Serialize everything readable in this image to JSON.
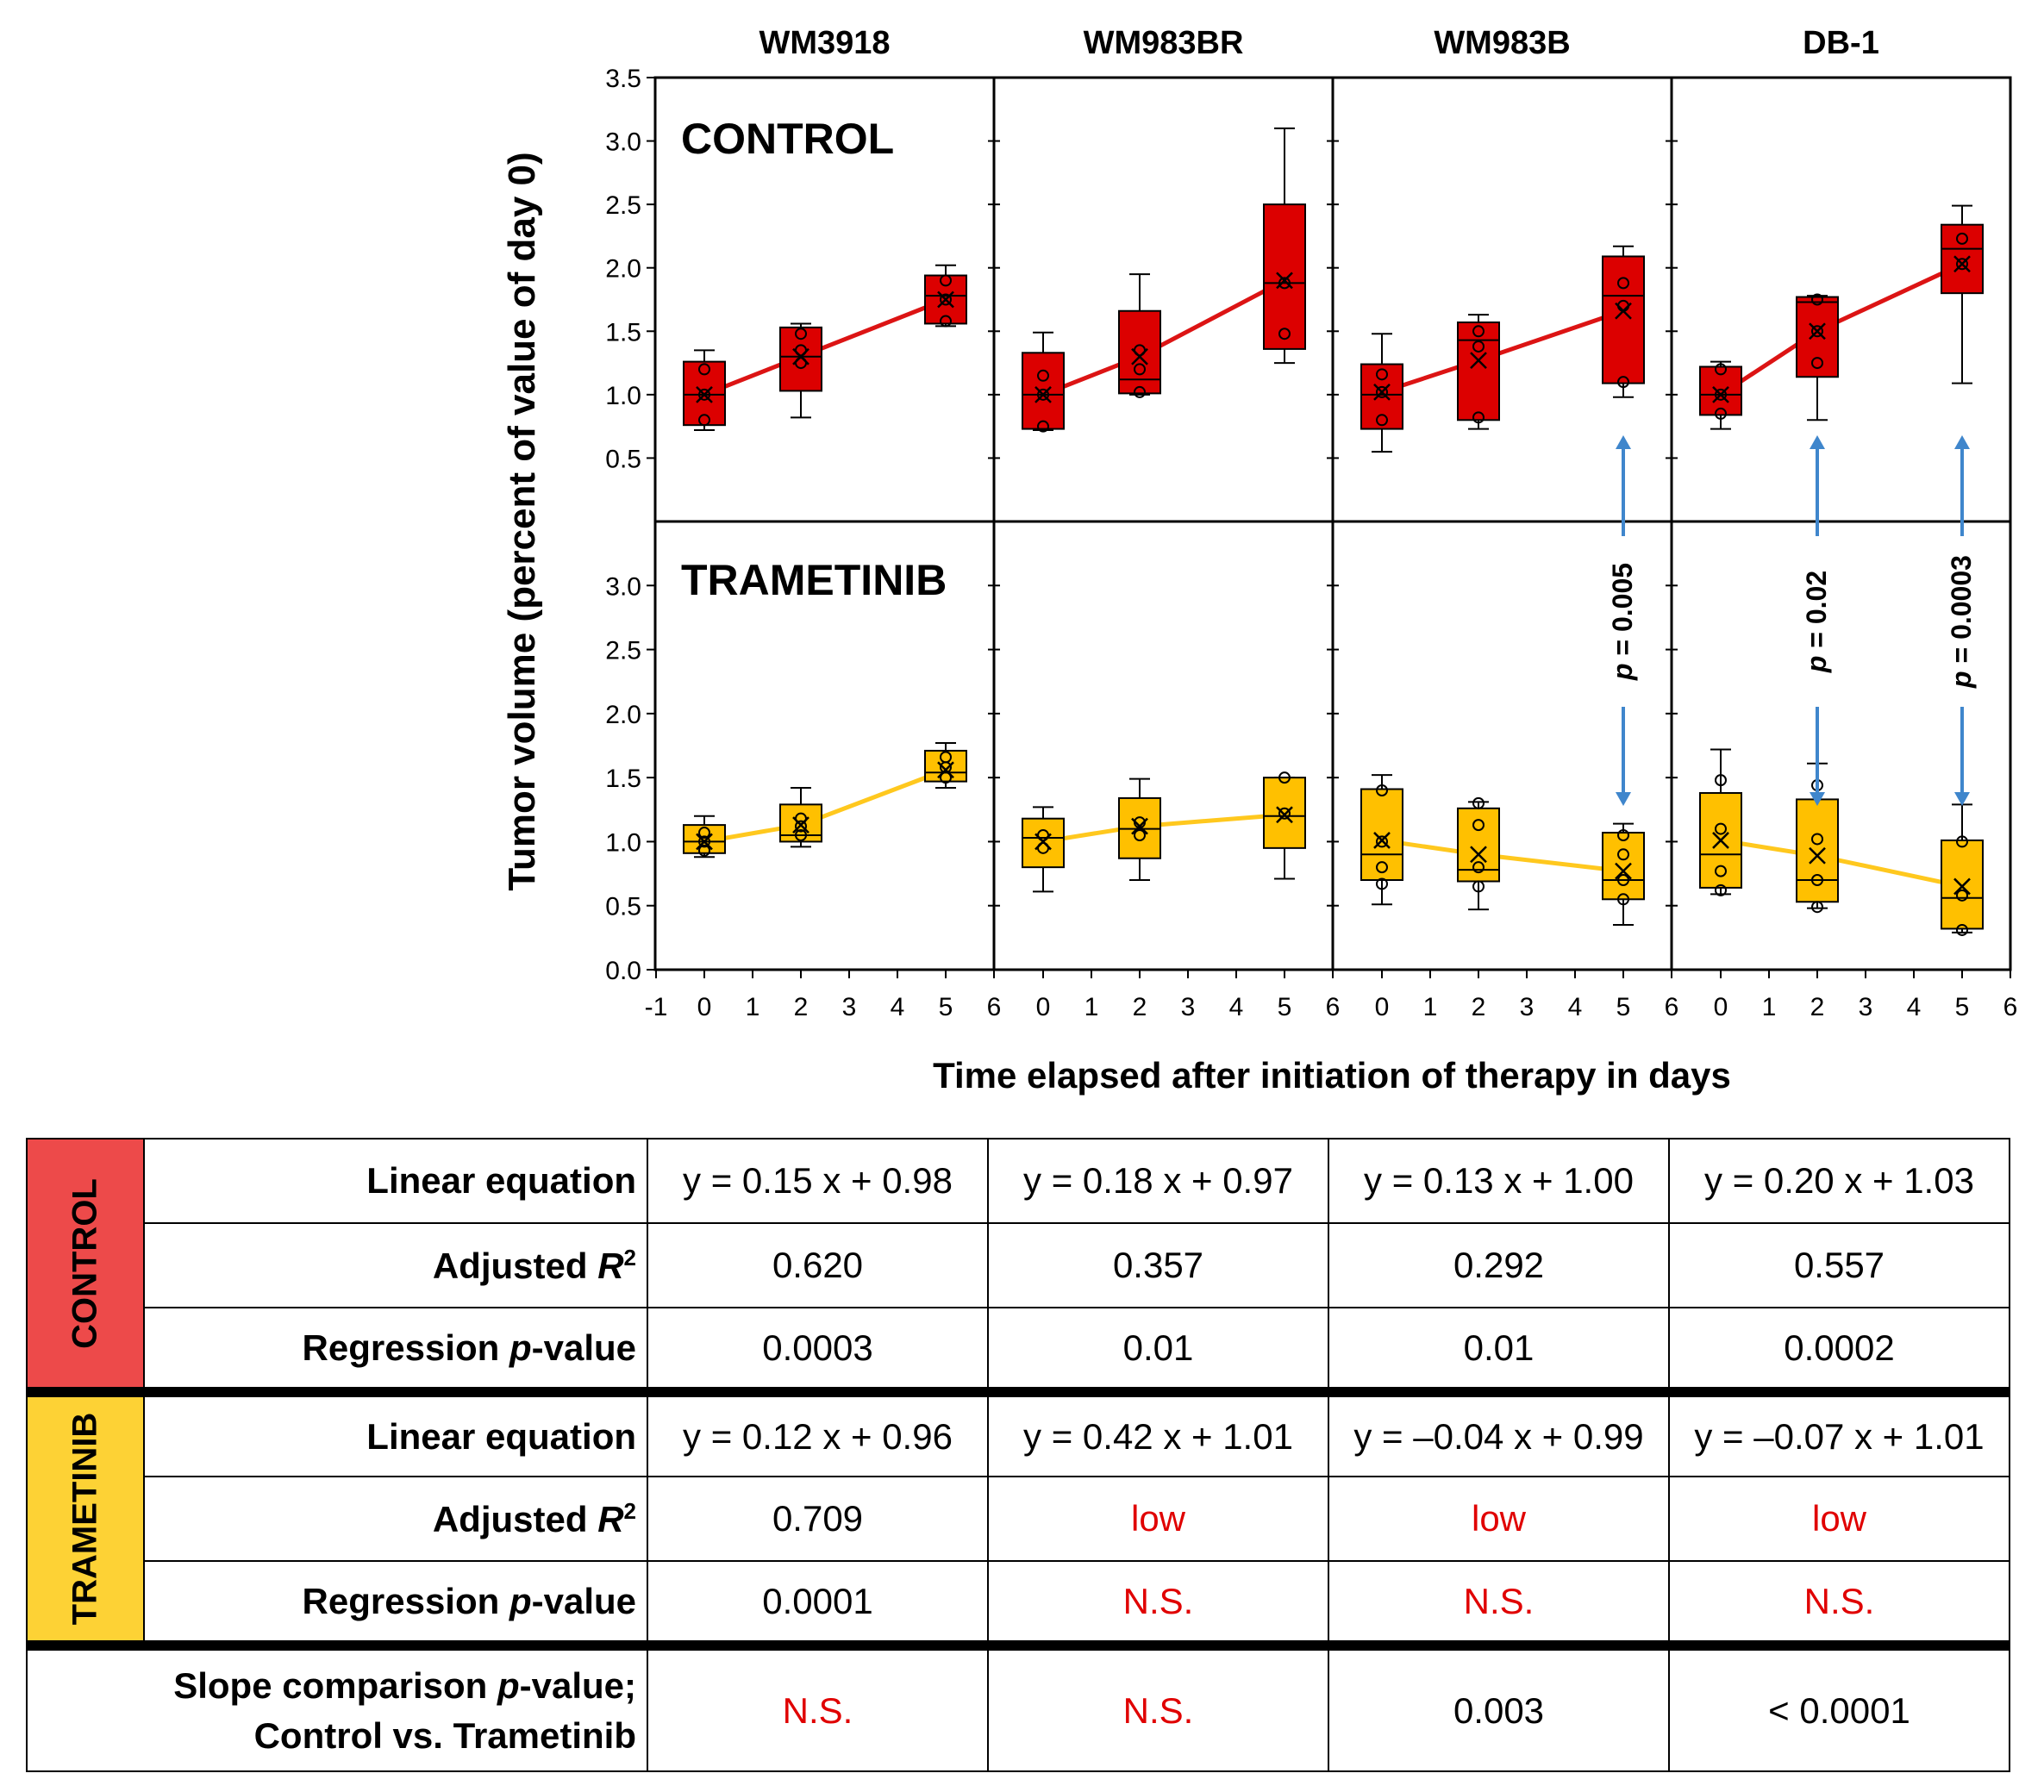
{
  "colors": {
    "control_fill": "#dc0000",
    "control_line": "#dc1414",
    "trametinib_fill": "#ffc000",
    "trametinib_line": "#ffc81e",
    "arrow": "#3f86cc",
    "not_significant_text": "#e00000",
    "control_group_bg": "#ed4a4a",
    "trametinib_group_bg": "#fdd235"
  },
  "chart_data": {
    "type": "box",
    "ylabel": "Tumor volume (percent of value of day 0)",
    "xlabel": "Time elapsed after initiation of therapy in days",
    "control_ylim": [
      0,
      3.5
    ],
    "control_yticks": [
      "0.5",
      "1.0",
      "1.5",
      "2.0",
      "2.5",
      "3.0",
      "3.5"
    ],
    "trametinib_ylim": [
      0,
      3.5
    ],
    "trametinib_yticks": [
      "0.0",
      "0.5",
      "1.0",
      "1.5",
      "2.0",
      "2.5",
      "3.0"
    ],
    "xticks": [
      [
        "-1",
        "0",
        "1",
        "2",
        "3",
        "4",
        "5",
        "6"
      ],
      [
        "0",
        "1",
        "2",
        "3",
        "4",
        "5",
        "6"
      ],
      [
        "0",
        "1",
        "2",
        "3",
        "4",
        "5",
        "6"
      ],
      [
        "0",
        "1",
        "2",
        "3",
        "4",
        "5",
        "6"
      ]
    ],
    "row_labels": {
      "control": "CONTROL",
      "trametinib": "TRAMETINIB"
    },
    "cell_lines": [
      "WM3918",
      "WM983BR",
      "WM983B",
      "DB-1"
    ],
    "panels": [
      {
        "cell_line": "WM3918",
        "control": [
          {
            "day": 0,
            "min": 0.72,
            "q1": 0.76,
            "median": 1.0,
            "q3": 1.26,
            "max": 1.35,
            "mean": 1.0,
            "points": [
              0.8,
              1.0,
              1.2
            ]
          },
          {
            "day": 2,
            "min": 0.82,
            "q1": 1.03,
            "median": 1.3,
            "q3": 1.53,
            "max": 1.56,
            "mean": 1.3,
            "points": [
              1.25,
              1.35,
              1.48
            ]
          },
          {
            "day": 5,
            "min": 1.54,
            "q1": 1.56,
            "median": 1.78,
            "q3": 1.94,
            "max": 2.02,
            "mean": 1.75,
            "points": [
              1.58,
              1.75,
              1.9
            ]
          }
        ],
        "trametinib": [
          {
            "day": 0,
            "min": 0.88,
            "q1": 0.91,
            "median": 1.0,
            "q3": 1.13,
            "max": 1.2,
            "mean": 1.0,
            "points": [
              0.93,
              1.0,
              1.07
            ]
          },
          {
            "day": 2,
            "min": 0.96,
            "q1": 1.0,
            "median": 1.05,
            "q3": 1.29,
            "max": 1.42,
            "mean": 1.13,
            "points": [
              1.05,
              1.12,
              1.18
            ]
          },
          {
            "day": 5,
            "min": 1.42,
            "q1": 1.47,
            "median": 1.54,
            "q3": 1.71,
            "max": 1.77,
            "mean": 1.56,
            "points": [
              1.5,
              1.58,
              1.66
            ]
          }
        ]
      },
      {
        "cell_line": "WM983BR",
        "control": [
          {
            "day": 0,
            "min": 0.72,
            "q1": 0.73,
            "median": 1.0,
            "q3": 1.33,
            "max": 1.49,
            "mean": 1.0,
            "points": [
              0.75,
              1.0,
              1.15
            ]
          },
          {
            "day": 2,
            "min": 1.0,
            "q1": 1.01,
            "median": 1.12,
            "q3": 1.66,
            "max": 1.95,
            "mean": 1.3,
            "points": [
              1.02,
              1.2,
              1.35
            ]
          },
          {
            "day": 5,
            "min": 1.25,
            "q1": 1.36,
            "median": 1.88,
            "q3": 2.5,
            "max": 3.1,
            "mean": 1.9,
            "points": [
              1.48,
              1.88
            ]
          }
        ],
        "trametinib": [
          {
            "day": 0,
            "min": 0.61,
            "q1": 0.8,
            "median": 1.03,
            "q3": 1.18,
            "max": 1.27,
            "mean": 1.0,
            "points": [
              0.95,
              1.05
            ]
          },
          {
            "day": 2,
            "min": 0.7,
            "q1": 0.87,
            "median": 1.1,
            "q3": 1.34,
            "max": 1.49,
            "mean": 1.12,
            "points": [
              1.05,
              1.15
            ]
          },
          {
            "day": 5,
            "min": 0.71,
            "q1": 0.95,
            "median": 1.2,
            "q3": 1.5,
            "max": 1.5,
            "mean": 1.21,
            "points": [
              1.5,
              1.22
            ]
          }
        ]
      },
      {
        "cell_line": "WM983B",
        "control": [
          {
            "day": 0,
            "min": 0.55,
            "q1": 0.73,
            "median": 1.0,
            "q3": 1.24,
            "max": 1.48,
            "mean": 1.02,
            "points": [
              0.8,
              1.02,
              1.16
            ]
          },
          {
            "day": 2,
            "min": 0.73,
            "q1": 0.8,
            "median": 1.43,
            "q3": 1.57,
            "max": 1.63,
            "mean": 1.27,
            "points": [
              0.82,
              1.38,
              1.5
            ]
          },
          {
            "day": 5,
            "min": 0.98,
            "q1": 1.09,
            "median": 1.78,
            "q3": 2.09,
            "max": 2.17,
            "mean": 1.66,
            "points": [
              1.1,
              1.7,
              1.88
            ]
          }
        ],
        "trametinib": [
          {
            "day": 0,
            "min": 0.51,
            "q1": 0.7,
            "median": 0.9,
            "q3": 1.41,
            "max": 1.52,
            "mean": 1.01,
            "points": [
              0.67,
              0.8,
              1.0,
              1.4
            ]
          },
          {
            "day": 2,
            "min": 0.47,
            "q1": 0.69,
            "median": 0.78,
            "q3": 1.26,
            "max": 1.31,
            "mean": 0.9,
            "points": [
              0.65,
              0.8,
              1.13,
              1.3
            ]
          },
          {
            "day": 5,
            "min": 0.35,
            "q1": 0.55,
            "median": 0.7,
            "q3": 1.07,
            "max": 1.14,
            "mean": 0.77,
            "points": [
              0.55,
              0.7,
              0.9,
              1.05
            ]
          }
        ]
      },
      {
        "cell_line": "DB-1",
        "control": [
          {
            "day": 0,
            "min": 0.73,
            "q1": 0.84,
            "median": 1.0,
            "q3": 1.22,
            "max": 1.26,
            "mean": 1.0,
            "points": [
              0.85,
              1.0,
              1.2
            ]
          },
          {
            "day": 2,
            "min": 0.8,
            "q1": 1.14,
            "median": 1.73,
            "q3": 1.77,
            "max": 1.78,
            "mean": 1.5,
            "points": [
              1.25,
              1.5,
              1.75
            ]
          },
          {
            "day": 5,
            "min": 1.09,
            "q1": 1.8,
            "median": 2.15,
            "q3": 2.34,
            "max": 2.49,
            "mean": 2.03,
            "points": [
              2.03,
              2.23
            ]
          }
        ],
        "trametinib": [
          {
            "day": 0,
            "min": 0.59,
            "q1": 0.64,
            "median": 0.9,
            "q3": 1.38,
            "max": 1.72,
            "mean": 1.01,
            "points": [
              0.62,
              0.77,
              1.1,
              1.48
            ]
          },
          {
            "day": 2,
            "min": 0.48,
            "q1": 0.53,
            "median": 0.7,
            "q3": 1.33,
            "max": 1.61,
            "mean": 0.89,
            "points": [
              0.49,
              0.7,
              1.02,
              1.44
            ]
          },
          {
            "day": 5,
            "min": 0.29,
            "q1": 0.32,
            "median": 0.56,
            "q3": 1.01,
            "max": 1.29,
            "mean": 0.65,
            "points": [
              0.31,
              0.58,
              1.0
            ]
          }
        ]
      }
    ],
    "annotations": [
      {
        "panel": 2,
        "day": 5,
        "p_value": "0.005",
        "p_prefix": "p",
        "eq_sign": "="
      },
      {
        "panel": 3,
        "day": 2,
        "p_value": "0.02",
        "p_prefix": "p",
        "eq_sign": "="
      },
      {
        "panel": 3,
        "day": 5,
        "p_value": "0.0003",
        "p_prefix": "p",
        "eq_sign": "="
      }
    ]
  },
  "table": {
    "groups": {
      "control": "CONTROL",
      "trametinib": "TRAMETINIB"
    },
    "labels": {
      "linear_equation": "Linear equation",
      "adjusted_prefix": "Adjusted",
      "r_symbol": "R",
      "r_power": "2",
      "regression_prefix": "Regression",
      "p_symbol": "p",
      "value_suffix": "-value",
      "slope_line1_prefix": "Slope comparison",
      "slope_line1_suffix": "-value;",
      "slope_line2": "Control vs. Trametinib"
    },
    "control": {
      "linear_equation": [
        "y = 0.15 x + 0.98",
        "y = 0.18 x + 0.97",
        "y = 0.13 x + 1.00",
        "y = 0.20 x + 1.03"
      ],
      "adjusted_r2": [
        "0.620",
        "0.357",
        "0.292",
        "0.557"
      ],
      "regression_p": [
        "0.0003",
        "0.01",
        "0.01",
        "0.0002"
      ]
    },
    "trametinib": {
      "linear_equation": [
        "y = 0.12 x + 0.96",
        "y = 0.42 x + 1.01",
        "y = –0.04 x + 0.99",
        "y = –0.07 x + 1.01"
      ],
      "adjusted_r2": [
        "0.709",
        "low",
        "low",
        "low"
      ],
      "regression_p": [
        "0.0001",
        "N.S.",
        "N.S.",
        "N.S."
      ]
    },
    "slope_comparison": [
      "N.S.",
      "N.S.",
      "0.003",
      "< 0.0001"
    ]
  }
}
